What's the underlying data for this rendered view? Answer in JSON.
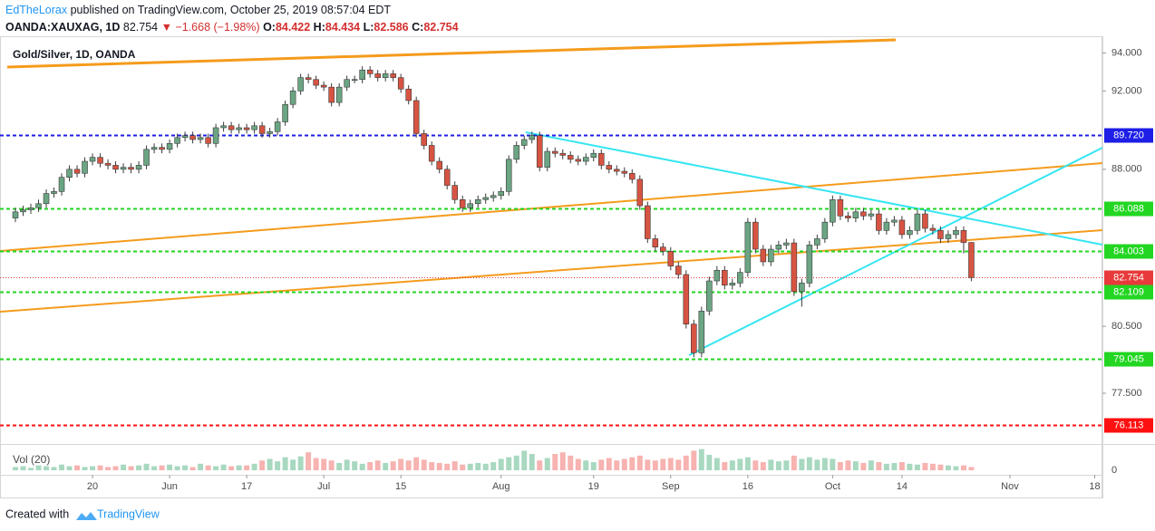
{
  "header": {
    "author": "EdTheLorax",
    "published": "published on TradingView.com, October 25, 2019 08:57:04 EDT",
    "symbol": "OANDA:XAUXAG, 1D",
    "last": "82.754",
    "change": "▼ −1.668 (−1.98%)",
    "ohlc": [
      {
        "key": "O:",
        "value": "84.422"
      },
      {
        "key": "H:",
        "value": "84.434"
      },
      {
        "key": "L:",
        "value": "82.586"
      },
      {
        "key": "C:",
        "value": "82.754"
      }
    ]
  },
  "footer": {
    "created": "Created with",
    "brand": "TradingView"
  },
  "chart_data": {
    "type": "candlestick",
    "title": "Gold/Silver, 1D, OANDA",
    "log_scale": true,
    "up_color": "#6ba583",
    "down_color": "#d75442",
    "x": [
      "2019-05-06",
      "2019-05-07",
      "2019-05-08",
      "2019-05-09",
      "2019-05-10",
      "2019-05-13",
      "2019-05-14",
      "2019-05-15",
      "2019-05-16",
      "2019-05-17",
      "2019-05-20",
      "2019-05-21",
      "2019-05-22",
      "2019-05-23",
      "2019-05-24",
      "2019-05-27",
      "2019-05-28",
      "2019-05-29",
      "2019-05-30",
      "2019-05-31",
      "2019-06-03",
      "2019-06-04",
      "2019-06-05",
      "2019-06-06",
      "2019-06-07",
      "2019-06-10",
      "2019-06-11",
      "2019-06-12",
      "2019-06-13",
      "2019-06-14",
      "2019-06-17",
      "2019-06-18",
      "2019-06-19",
      "2019-06-20",
      "2019-06-21",
      "2019-06-24",
      "2019-06-25",
      "2019-06-26",
      "2019-06-27",
      "2019-06-28",
      "2019-07-01",
      "2019-07-02",
      "2019-07-03",
      "2019-07-04",
      "2019-07-05",
      "2019-07-08",
      "2019-07-09",
      "2019-07-10",
      "2019-07-11",
      "2019-07-12",
      "2019-07-15",
      "2019-07-16",
      "2019-07-17",
      "2019-07-18",
      "2019-07-19",
      "2019-07-22",
      "2019-07-23",
      "2019-07-24",
      "2019-07-25",
      "2019-07-26",
      "2019-07-29",
      "2019-07-30",
      "2019-07-31",
      "2019-08-01",
      "2019-08-02",
      "2019-08-05",
      "2019-08-06",
      "2019-08-07",
      "2019-08-08",
      "2019-08-09",
      "2019-08-12",
      "2019-08-13",
      "2019-08-14",
      "2019-08-15",
      "2019-08-16",
      "2019-08-19",
      "2019-08-20",
      "2019-08-21",
      "2019-08-22",
      "2019-08-23",
      "2019-08-26",
      "2019-08-27",
      "2019-08-28",
      "2019-08-29",
      "2019-08-30",
      "2019-09-02",
      "2019-09-03",
      "2019-09-04",
      "2019-09-05",
      "2019-09-06",
      "2019-09-09",
      "2019-09-10",
      "2019-09-11",
      "2019-09-12",
      "2019-09-13",
      "2019-09-16",
      "2019-09-17",
      "2019-09-18",
      "2019-09-19",
      "2019-09-20",
      "2019-09-23",
      "2019-09-24",
      "2019-09-25",
      "2019-09-26",
      "2019-09-27",
      "2019-09-30",
      "2019-10-01",
      "2019-10-02",
      "2019-10-03",
      "2019-10-04",
      "2019-10-07",
      "2019-10-08",
      "2019-10-09",
      "2019-10-10",
      "2019-10-11",
      "2019-10-14",
      "2019-10-15",
      "2019-10-16",
      "2019-10-17",
      "2019-10-18",
      "2019-10-21",
      "2019-10-22",
      "2019-10-23",
      "2019-10-24",
      "2019-10-25"
    ],
    "open": [
      85.6,
      85.9,
      86.0,
      86.1,
      86.3,
      86.8,
      86.9,
      87.6,
      88.0,
      87.8,
      88.4,
      88.6,
      88.3,
      88.2,
      88.0,
      88.1,
      88.0,
      88.2,
      89.0,
      89.1,
      89.0,
      89.3,
      89.6,
      89.7,
      89.5,
      89.6,
      89.3,
      90.1,
      90.2,
      90.0,
      90.1,
      90.0,
      90.2,
      89.8,
      89.9,
      90.4,
      91.3,
      92.0,
      92.7,
      92.6,
      92.3,
      92.2,
      91.4,
      92.2,
      92.6,
      92.6,
      93.1,
      92.9,
      92.7,
      92.9,
      92.7,
      92.1,
      91.5,
      89.8,
      89.2,
      88.4,
      88.0,
      87.2,
      86.5,
      86.1,
      86.3,
      86.5,
      86.6,
      86.7,
      86.9,
      88.5,
      89.2,
      89.5,
      89.7,
      88.1,
      88.9,
      88.8,
      88.7,
      88.5,
      88.4,
      88.6,
      88.8,
      88.2,
      88.0,
      87.9,
      87.8,
      87.5,
      86.2,
      84.6,
      84.2,
      84.0,
      83.3,
      82.9,
      80.6,
      79.3,
      81.2,
      82.6,
      83.1,
      82.4,
      82.5,
      83.0,
      85.4,
      84.1,
      83.5,
      84.1,
      84.3,
      84.4,
      82.1,
      82.5,
      84.3,
      84.6,
      85.4,
      86.5,
      85.7,
      85.6,
      85.9,
      85.7,
      85.8,
      85.0,
      85.4,
      85.5,
      84.8,
      85.0,
      85.8,
      85.1,
      85.0,
      84.6,
      84.8,
      85.0,
      84.422
    ],
    "high": [
      86.1,
      86.2,
      86.3,
      86.5,
      87.0,
      87.1,
      87.8,
      88.2,
      88.2,
      88.6,
      88.8,
      88.8,
      88.5,
      88.4,
      88.3,
      88.3,
      88.4,
      89.2,
      89.3,
      89.3,
      89.5,
      89.8,
      89.9,
      89.9,
      89.8,
      89.8,
      90.3,
      90.4,
      90.4,
      90.3,
      90.3,
      90.4,
      90.4,
      90.1,
      90.6,
      91.5,
      92.2,
      92.9,
      92.9,
      92.8,
      92.5,
      92.4,
      92.4,
      92.8,
      92.8,
      93.3,
      93.3,
      93.1,
      93.1,
      93.1,
      92.9,
      92.3,
      91.7,
      90.0,
      89.4,
      88.6,
      88.2,
      87.4,
      86.7,
      86.5,
      86.7,
      86.8,
      86.9,
      87.1,
      88.7,
      89.4,
      89.7,
      89.9,
      89.9,
      89.1,
      89.1,
      89.0,
      88.9,
      88.7,
      88.8,
      89.0,
      89.0,
      88.4,
      88.2,
      88.1,
      88.0,
      87.7,
      86.4,
      84.8,
      84.4,
      84.2,
      83.5,
      83.1,
      80.8,
      81.4,
      82.8,
      83.3,
      83.3,
      82.7,
      83.2,
      85.6,
      85.6,
      84.3,
      84.3,
      84.5,
      84.6,
      84.6,
      82.7,
      84.5,
      84.8,
      85.6,
      86.7,
      86.7,
      85.9,
      86.1,
      86.1,
      86.0,
      86.0,
      85.6,
      85.7,
      85.7,
      85.2,
      86.0,
      86.0,
      85.3,
      85.2,
      85.0,
      85.2,
      85.2,
      84.434
    ],
    "low": [
      85.4,
      85.7,
      85.8,
      85.9,
      86.1,
      86.6,
      86.7,
      87.4,
      87.6,
      87.6,
      88.2,
      88.1,
      88.0,
      87.8,
      87.8,
      87.8,
      87.8,
      88.0,
      88.8,
      88.8,
      88.8,
      89.1,
      89.4,
      89.3,
      89.3,
      89.1,
      89.1,
      89.9,
      89.8,
      89.8,
      89.8,
      89.8,
      89.6,
      89.6,
      89.7,
      90.2,
      91.1,
      91.8,
      92.4,
      92.1,
      92.0,
      91.2,
      91.2,
      92.0,
      92.4,
      92.4,
      92.7,
      92.5,
      92.5,
      92.5,
      91.9,
      91.3,
      89.6,
      89.0,
      88.2,
      87.8,
      87.0,
      86.3,
      85.9,
      85.9,
      86.1,
      86.3,
      86.4,
      86.5,
      86.7,
      88.3,
      89.0,
      89.3,
      87.9,
      87.9,
      88.6,
      88.5,
      88.3,
      88.2,
      88.2,
      88.4,
      88.0,
      87.8,
      87.7,
      87.6,
      87.3,
      86.0,
      84.4,
      84.0,
      83.8,
      83.1,
      82.7,
      80.4,
      79.1,
      79.1,
      81.0,
      82.4,
      82.2,
      82.2,
      82.3,
      82.8,
      83.9,
      83.3,
      83.3,
      83.9,
      84.1,
      81.9,
      81.4,
      82.3,
      84.1,
      84.4,
      85.2,
      85.5,
      85.4,
      85.4,
      85.5,
      85.5,
      84.8,
      84.8,
      85.2,
      84.6,
      84.6,
      84.8,
      84.9,
      84.8,
      84.4,
      84.4,
      84.6,
      83.9,
      82.586
    ],
    "close": [
      85.9,
      86.0,
      86.1,
      86.3,
      86.8,
      86.9,
      87.6,
      88.0,
      87.8,
      88.4,
      88.6,
      88.3,
      88.2,
      88.0,
      88.1,
      88.0,
      88.2,
      89.0,
      89.1,
      89.0,
      89.3,
      89.6,
      89.7,
      89.5,
      89.6,
      89.3,
      90.1,
      90.2,
      90.0,
      90.1,
      90.0,
      90.2,
      89.8,
      89.9,
      90.4,
      91.3,
      92.0,
      92.7,
      92.6,
      92.3,
      92.2,
      91.4,
      92.2,
      92.6,
      92.6,
      93.1,
      92.9,
      92.7,
      92.9,
      92.7,
      92.1,
      91.5,
      89.8,
      89.2,
      88.4,
      88.0,
      87.2,
      86.5,
      86.1,
      86.3,
      86.5,
      86.6,
      86.7,
      86.9,
      88.5,
      89.2,
      89.5,
      89.7,
      88.1,
      88.9,
      88.8,
      88.7,
      88.5,
      88.4,
      88.6,
      88.8,
      88.2,
      88.0,
      87.9,
      87.8,
      87.5,
      86.2,
      84.6,
      84.2,
      84.0,
      83.3,
      82.9,
      80.6,
      79.3,
      81.2,
      82.6,
      83.1,
      82.4,
      82.5,
      83.0,
      85.4,
      84.1,
      83.5,
      84.1,
      84.3,
      84.4,
      82.1,
      82.5,
      84.3,
      84.6,
      85.4,
      86.5,
      85.7,
      85.6,
      85.9,
      85.7,
      85.8,
      85.0,
      85.4,
      85.5,
      84.8,
      85.0,
      85.8,
      85.1,
      85.0,
      84.6,
      84.8,
      85.0,
      84.42,
      82.754
    ],
    "ylim": [
      75.3,
      94.9
    ],
    "yticks": [
      {
        "value": 94,
        "label": "94.000"
      },
      {
        "value": 92,
        "label": "92.000"
      },
      {
        "value": 88,
        "label": "88.000"
      },
      {
        "value": 80.5,
        "label": "80.500"
      },
      {
        "value": 77.5,
        "label": "77.500"
      }
    ],
    "xlim": [
      "2019-05-02",
      "2019-11-19"
    ],
    "xticks": [
      {
        "value": "2019-05-20",
        "label": "20"
      },
      {
        "value": "2019-06-03",
        "label": "Jun"
      },
      {
        "value": "2019-06-17",
        "label": "17"
      },
      {
        "value": "2019-07-01",
        "label": "Jul"
      },
      {
        "value": "2019-07-15",
        "label": "15"
      },
      {
        "value": "2019-08-01",
        "label": "Aug"
      },
      {
        "value": "2019-08-19",
        "label": "19"
      },
      {
        "value": "2019-09-02",
        "label": "Sep"
      },
      {
        "value": "2019-09-16",
        "label": "16"
      },
      {
        "value": "2019-10-01",
        "label": "Oct"
      },
      {
        "value": "2019-10-14",
        "label": "14"
      },
      {
        "value": "2019-11-01",
        "label": "Nov"
      },
      {
        "value": "2019-11-18",
        "label": "18"
      }
    ],
    "levels": [
      {
        "value": 89.72,
        "label": "89.720",
        "color": "#1e1ee6",
        "style": "dashed"
      },
      {
        "value": 86.088,
        "label": "86.088",
        "color": "#22d622",
        "style": "dashed"
      },
      {
        "value": 84.003,
        "label": "84.003",
        "color": "#22d622",
        "style": "dashed"
      },
      {
        "value": 82.754,
        "label": "82.754",
        "color": "#e83a3a",
        "style": "dotted"
      },
      {
        "value": 82.109,
        "label": "82.109",
        "color": "#22d622",
        "style": "dashed"
      },
      {
        "value": 79.045,
        "label": "79.045",
        "color": "#22d622",
        "style": "dashed"
      },
      {
        "value": 76.113,
        "label": "76.113",
        "color": "#ff1010",
        "style": "dashed"
      }
    ],
    "volume": {
      "name": "Vol (20)",
      "up_color": "#a8d8c0",
      "down_color": "#f6b3b0",
      "ylim": [
        0,
        30
      ],
      "yticks": [
        0
      ],
      "values": [
        4,
        5,
        3,
        6,
        5,
        4,
        7,
        5,
        6,
        4,
        5,
        6,
        4,
        5,
        7,
        5,
        6,
        8,
        5,
        6,
        7,
        5,
        6,
        4,
        8,
        6,
        5,
        7,
        5,
        6,
        6,
        8,
        12,
        14,
        11,
        16,
        13,
        17,
        22,
        15,
        14,
        12,
        9,
        13,
        11,
        8,
        10,
        12,
        9,
        11,
        14,
        12,
        16,
        13,
        10,
        9,
        8,
        11,
        7,
        8,
        9,
        8,
        10,
        14,
        16,
        18,
        24,
        20,
        12,
        15,
        20,
        22,
        18,
        14,
        12,
        10,
        13,
        15,
        12,
        14,
        16,
        18,
        13,
        12,
        14,
        15,
        13,
        18,
        24,
        26,
        19,
        15,
        10,
        12,
        14,
        16,
        12,
        10,
        13,
        11,
        12,
        18,
        14,
        16,
        13,
        15,
        14,
        10,
        12,
        11,
        9,
        12,
        10,
        8,
        9,
        10,
        8,
        7,
        9,
        8,
        7,
        6,
        5,
        6,
        4
      ]
    }
  }
}
